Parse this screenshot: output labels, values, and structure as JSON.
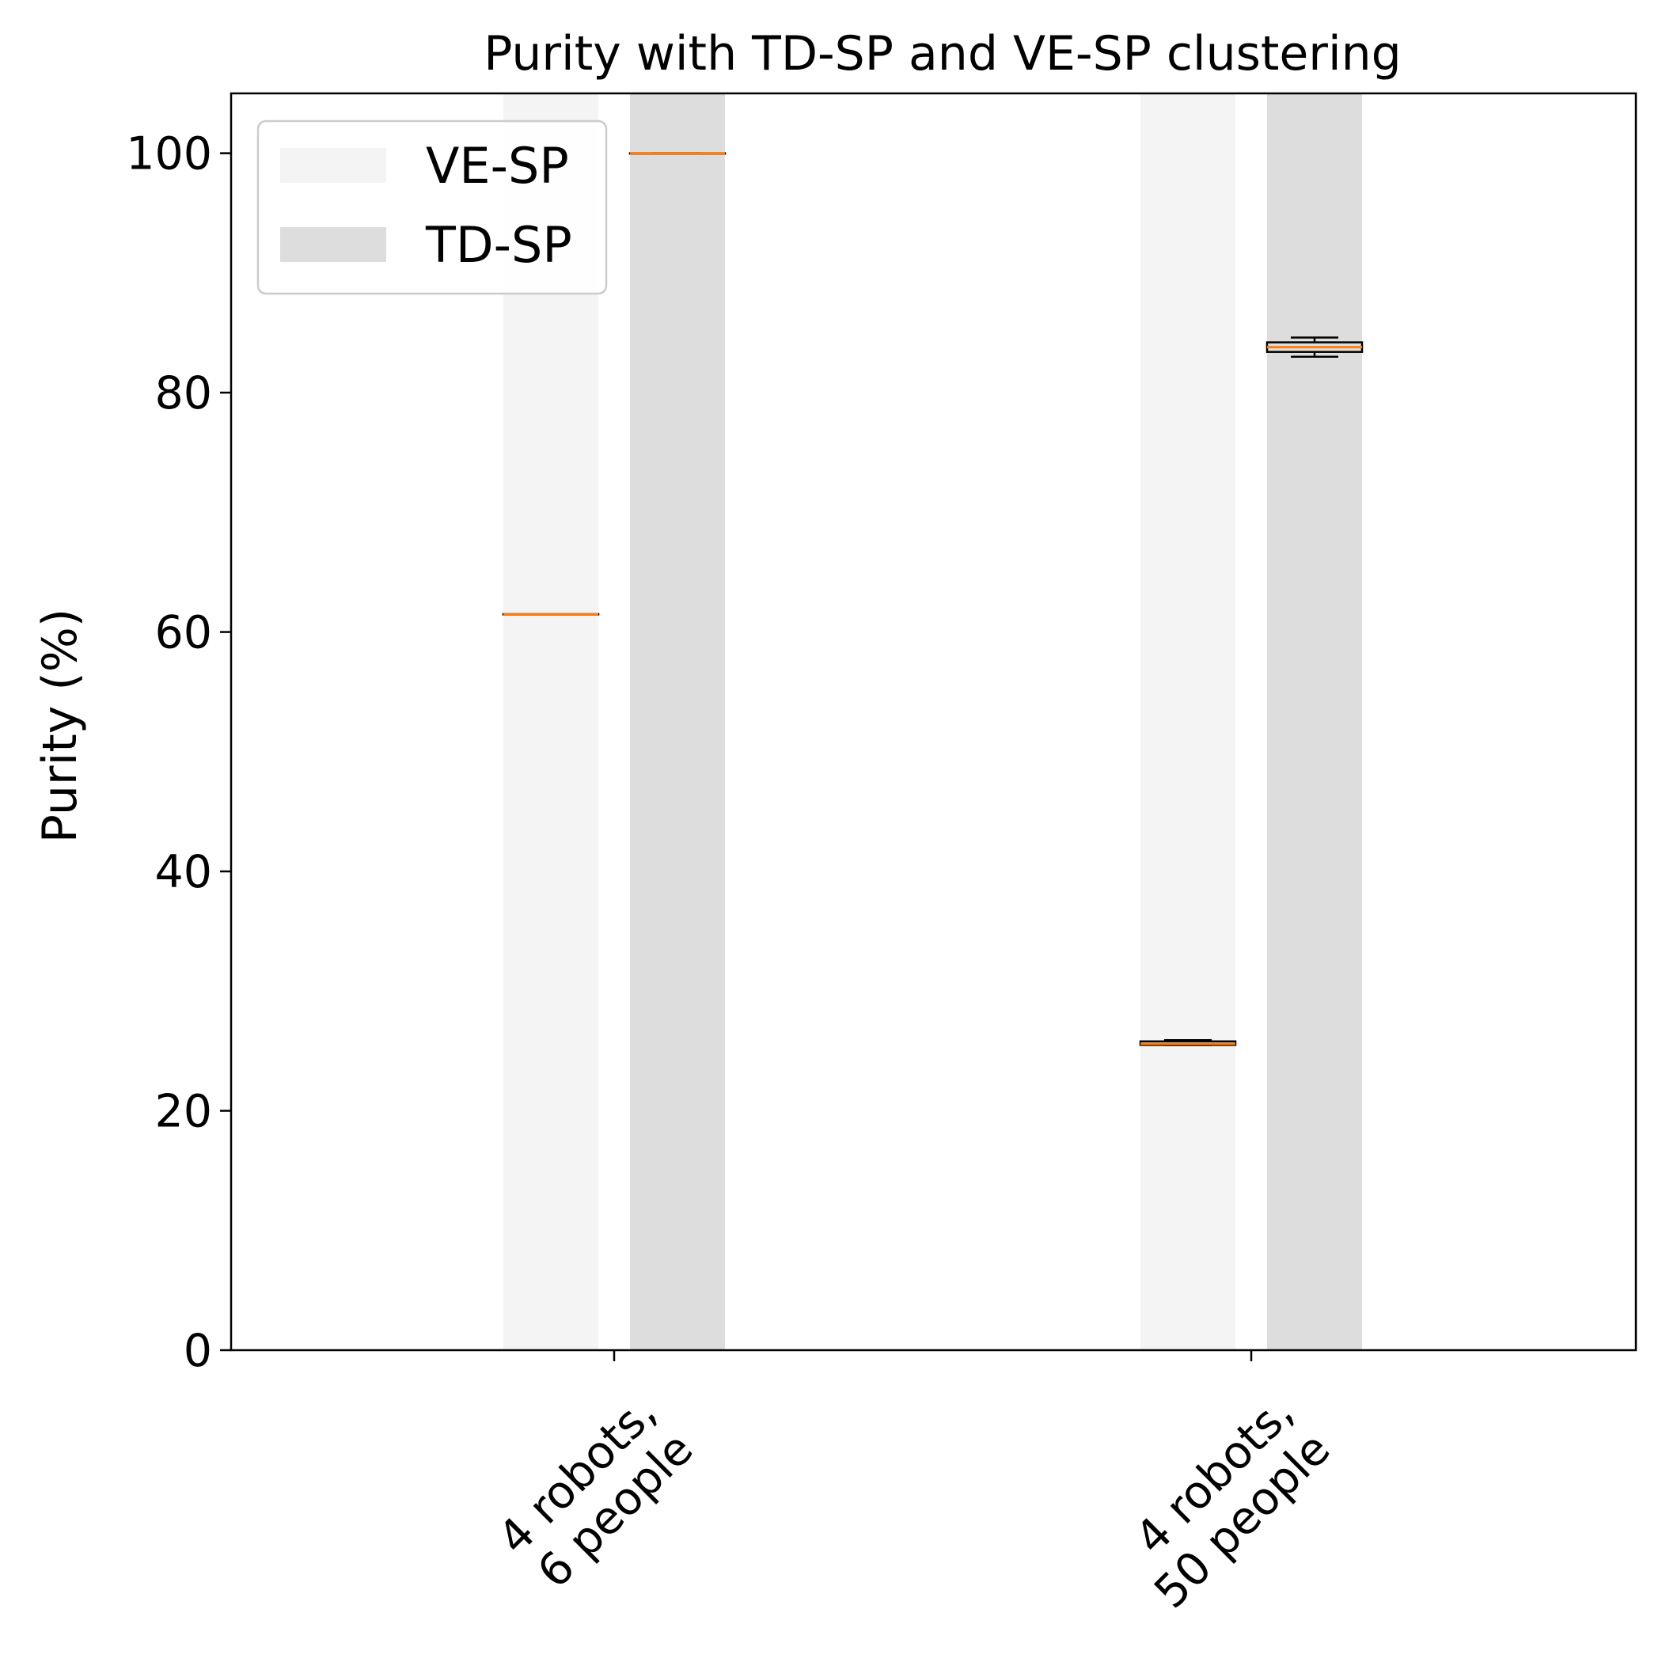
{
  "chart_data": {
    "type": "box",
    "title": "Purity with TD-SP and VE-SP clustering",
    "xlabel": "",
    "ylabel": "Purity (%)",
    "ylim": [
      0,
      105
    ],
    "yticks": [
      0,
      20,
      40,
      60,
      80,
      100
    ],
    "grid": false,
    "legend_position": "upper-left",
    "categories": [
      [
        "4 robots,",
        "6 people"
      ],
      [
        "4 robots,",
        "50 people"
      ]
    ],
    "series": [
      {
        "name": "VE-SP",
        "color": "#f4f4f4",
        "boxes": [
          {
            "whisker_low": 61.5,
            "q1": 61.5,
            "median": 61.5,
            "q3": 61.5,
            "whisker_high": 61.5
          },
          {
            "whisker_low": 25.5,
            "q1": 25.5,
            "median": 25.6,
            "q3": 25.8,
            "whisker_high": 25.9
          }
        ]
      },
      {
        "name": "TD-SP",
        "color": "#dddddd",
        "boxes": [
          {
            "whisker_low": 100,
            "q1": 100,
            "median": 100,
            "q3": 100,
            "whisker_high": 100
          },
          {
            "whisker_low": 83.0,
            "q1": 83.4,
            "median": 83.8,
            "q3": 84.2,
            "whisker_high": 84.6
          }
        ]
      }
    ],
    "median_color": "#ff7f0e"
  }
}
